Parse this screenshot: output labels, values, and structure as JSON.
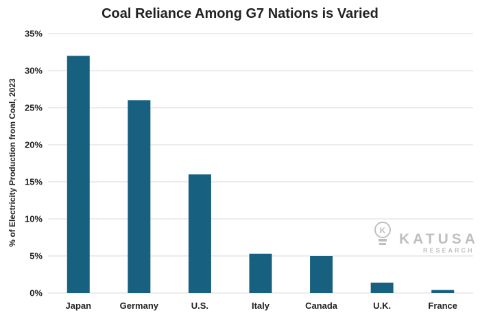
{
  "chart_data": {
    "type": "bar",
    "title": "Coal Reliance Among G7 Nations is Varied",
    "xlabel": "",
    "ylabel": "% of Electricity Production from Coal, 2023",
    "categories": [
      "Japan",
      "Germany",
      "U.S.",
      "Italy",
      "Canada",
      "U.K.",
      "France"
    ],
    "values": [
      32,
      26,
      16,
      5.3,
      5.0,
      1.4,
      0.4
    ],
    "ylim": [
      0,
      35
    ],
    "yticks": [
      "0%",
      "5%",
      "10%",
      "15%",
      "20%",
      "25%",
      "30%",
      "35%"
    ],
    "grid": true,
    "legend": "none",
    "bar_color": "#17607f"
  },
  "watermark": {
    "name": "KATUSA",
    "sub": "RESEARCH",
    "icon": "lightbulb-k-icon",
    "color": "#b9b9b9"
  }
}
